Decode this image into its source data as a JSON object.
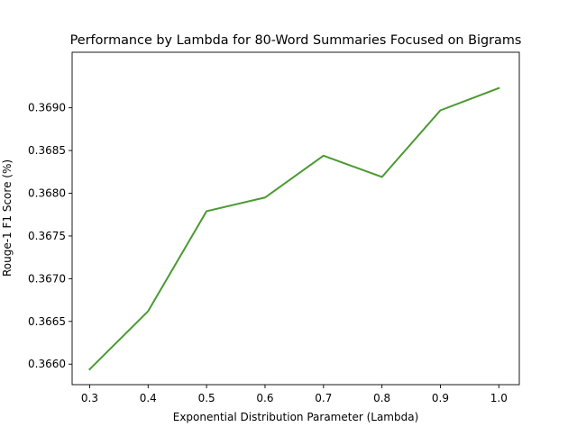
{
  "chart_data": {
    "type": "line",
    "title": "Performance by Lambda for 80-Word Summaries Focused on Bigrams",
    "xlabel": "Exponential Distribution Parameter (Lambda)",
    "ylabel": "Rouge-1 F1 Score (%)",
    "x": [
      0.3,
      0.4,
      0.5,
      0.6,
      0.7,
      0.8,
      0.9,
      1.0
    ],
    "x_tick_labels": [
      "0.3",
      "0.4",
      "0.5",
      "0.6",
      "0.7",
      "0.8",
      "0.9",
      "1.0"
    ],
    "y_ticks": [
      0.366,
      0.3665,
      0.367,
      0.3675,
      0.368,
      0.3685,
      0.369
    ],
    "y_tick_labels": [
      "0.3660",
      "0.3665",
      "0.3670",
      "0.3675",
      "0.3680",
      "0.3685",
      "0.3690"
    ],
    "xlim": [
      0.27,
      1.035
    ],
    "ylim": [
      0.36576,
      0.36965
    ],
    "grid": false,
    "series": [
      {
        "color": "#4a9a30",
        "values": [
          0.36594,
          0.36662,
          0.36779,
          0.36795,
          0.36844,
          0.36819,
          0.36897,
          0.36923
        ]
      }
    ]
  }
}
